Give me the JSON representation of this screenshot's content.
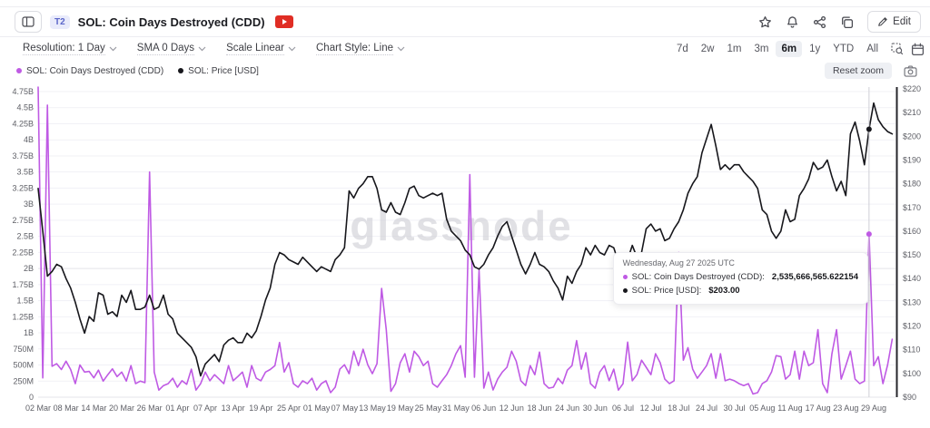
{
  "header": {
    "badge": "T2",
    "title": "SOL: Coin Days Destroyed (CDD)",
    "edit_label": "Edit"
  },
  "toolbar": {
    "dropdowns": [
      {
        "id": "resolution",
        "label": "Resolution: 1 Day"
      },
      {
        "id": "sma",
        "label": "SMA 0 Days"
      },
      {
        "id": "scale",
        "label": "Scale Linear"
      },
      {
        "id": "chart-style",
        "label": "Chart Style: Line"
      }
    ],
    "ranges": [
      "7d",
      "2w",
      "1m",
      "3m",
      "6m",
      "1y",
      "YTD",
      "All"
    ],
    "active_range": "6m"
  },
  "legend_bar": {
    "items": [
      {
        "label": "SOL: Coin Days Destroyed (CDD)",
        "color": "#bf5ae4"
      },
      {
        "label": "SOL: Price [USD]",
        "color": "#17171c"
      }
    ],
    "reset_zoom_label": "Reset zoom"
  },
  "tooltip": {
    "date": "Wednesday, Aug 27 2025 UTC",
    "rows": [
      {
        "label": "SOL: Coin Days Destroyed (CDD):",
        "value": "2,535,666,565.622154",
        "color": "#bf5ae4"
      },
      {
        "label": "SOL: Price [USD]:",
        "value": "$203.00",
        "color": "#17171c"
      }
    ]
  },
  "watermark": "glassnode",
  "icons": [
    "panel-icon",
    "star-icon",
    "bell-icon",
    "share-icon",
    "copy-icon",
    "pencil-icon",
    "video-icon",
    "chevron-down-icon",
    "zoom-area-icon",
    "calendar-icon",
    "camera-icon"
  ],
  "colors": {
    "cdd_line": "#bf5ae4",
    "price_line": "#17171c",
    "grid": "#f1f1f6",
    "axis_text": "#5e5f66",
    "watermark": "#d2d2d8"
  },
  "chart_data": {
    "type": "line",
    "x_tick_labels": [
      "02 Mar",
      "08 Mar",
      "14 Mar",
      "20 Mar",
      "26 Mar",
      "01 Apr",
      "07 Apr",
      "13 Apr",
      "19 Apr",
      "25 Apr",
      "01 May",
      "07 May",
      "13 May",
      "19 May",
      "25 May",
      "31 May",
      "06 Jun",
      "12 Jun",
      "18 Jun",
      "24 Jun",
      "30 Jun",
      "06 Jul",
      "12 Jul",
      "18 Jul",
      "24 Jul",
      "30 Jul",
      "05 Aug",
      "11 Aug",
      "17 Aug",
      "23 Aug",
      "29 Aug"
    ],
    "x_tick_every_days": 6,
    "left_axis": {
      "ticks": [
        "0",
        "250M",
        "500M",
        "750M",
        "1B",
        "1.25B",
        "1.5B",
        "1.75B",
        "2B",
        "2.25B",
        "2.5B",
        "2.75B",
        "3B",
        "3.25B",
        "3.5B",
        "3.75B",
        "4B",
        "4.25B",
        "4.5B",
        "4.75B"
      ],
      "step_m": 250,
      "max_value_m": 4750
    },
    "right_axis": {
      "min": 90,
      "max": 220,
      "step": 10,
      "prefix": "$"
    },
    "series": [
      {
        "name": "SOL: Coin Days Destroyed (CDD)",
        "axis": "left",
        "unit": "millions",
        "color": "#bf5ae4",
        "values": [
          4820,
          300,
          4540,
          480,
          520,
          430,
          560,
          430,
          210,
          500,
          390,
          400,
          300,
          420,
          250,
          350,
          440,
          320,
          390,
          250,
          490,
          210,
          250,
          225,
          3500,
          390,
          110,
          180,
          210,
          295,
          155,
          255,
          200,
          435,
          110,
          210,
          390,
          255,
          350,
          280,
          210,
          490,
          255,
          320,
          390,
          155,
          490,
          295,
          255,
          390,
          430,
          490,
          850,
          390,
          535,
          210,
          155,
          255,
          210,
          295,
          110,
          210,
          255,
          70,
          155,
          435,
          505,
          365,
          715,
          490,
          745,
          505,
          365,
          520,
          1690,
          1050,
          90,
          210,
          535,
          675,
          390,
          715,
          630,
          490,
          560,
          210,
          155,
          255,
          350,
          490,
          675,
          800,
          310,
          3460,
          310,
          1970,
          141,
          390,
          112,
          280,
          390,
          465,
          715,
          560,
          255,
          180,
          490,
          350,
          700,
          210,
          140,
          155,
          295,
          210,
          420,
          490,
          880,
          435,
          690,
          210,
          140,
          390,
          490,
          255,
          435,
          110,
          210,
          855,
          255,
          350,
          575,
          465,
          350,
          675,
          535,
          280,
          210,
          255,
          2250,
          575,
          770,
          435,
          295,
          390,
          490,
          675,
          295,
          675,
          255,
          280,
          255,
          210,
          180,
          210,
          50,
          70,
          210,
          255,
          390,
          645,
          630,
          280,
          350,
          715,
          280,
          715,
          490,
          535,
          1050,
          210,
          70,
          675,
          1050,
          280,
          490,
          715,
          280,
          210,
          250,
          2535.667,
          490,
          630,
          210,
          500,
          900
        ]
      },
      {
        "name": "SOL: Price [USD]",
        "axis": "right",
        "unit": "USD",
        "color": "#17171c",
        "values": [
          178,
          160,
          141,
          143,
          146,
          145,
          140,
          136,
          130,
          123,
          117,
          124,
          122,
          134,
          133,
          125,
          126,
          124,
          133,
          130,
          135,
          127,
          127,
          128,
          133,
          127,
          128,
          133,
          125,
          123,
          117,
          115,
          113,
          111,
          107,
          99,
          104,
          106,
          108,
          105,
          112,
          114,
          115,
          113,
          113,
          117,
          115,
          118,
          124,
          131,
          136,
          146,
          151,
          150,
          148,
          147,
          146,
          149,
          147,
          145,
          143,
          145,
          144,
          143,
          148,
          150,
          153,
          177,
          174,
          178,
          180,
          183,
          183,
          178,
          169,
          168,
          172,
          168,
          167,
          172,
          178,
          179,
          175,
          174,
          175,
          176,
          175,
          176,
          165,
          160,
          158,
          156,
          152,
          150,
          145,
          144,
          146,
          150,
          153,
          158,
          162,
          164,
          158,
          152,
          146,
          142,
          146,
          151,
          146,
          145,
          143,
          139,
          136,
          131,
          141,
          138,
          143,
          146,
          153,
          150,
          154,
          151,
          150,
          154,
          153,
          147,
          147,
          148,
          154,
          149,
          151,
          161,
          163,
          160,
          161,
          156,
          157,
          161,
          164,
          169,
          176,
          180,
          183,
          193,
          199,
          205,
          196,
          186,
          188,
          186,
          188,
          188,
          185,
          183,
          181,
          178,
          169,
          167,
          160,
          157,
          160,
          169,
          164,
          165,
          175,
          178,
          182,
          189,
          186,
          187,
          190,
          183,
          177,
          181,
          175,
          201,
          206,
          198,
          188,
          203,
          214,
          207,
          204,
          202,
          201
        ]
      }
    ],
    "crosshair": {
      "day_index": 179,
      "cdd_m": 2535.666565622154,
      "price": 203
    }
  }
}
